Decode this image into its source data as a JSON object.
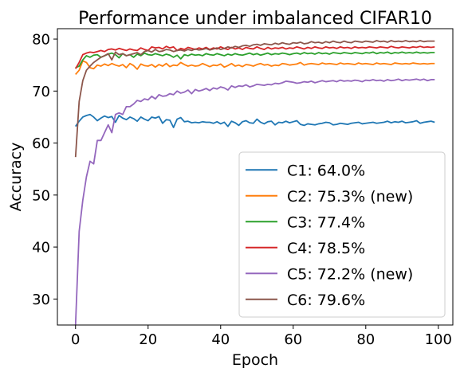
{
  "chart_data": {
    "type": "line",
    "title": "Performance under imbalanced CIFAR10",
    "xlabel": "Epoch",
    "ylabel": "Accuracy",
    "xlim": [
      -5,
      104
    ],
    "ylim": [
      25,
      82
    ],
    "xticks": [
      0,
      20,
      40,
      60,
      80,
      100
    ],
    "yticks": [
      30,
      40,
      50,
      60,
      70,
      80
    ],
    "grid": false,
    "legend_position": "lower-right",
    "x": [
      0,
      1,
      2,
      3,
      4,
      5,
      6,
      7,
      8,
      9,
      10,
      11,
      12,
      13,
      14,
      15,
      16,
      17,
      18,
      19,
      20,
      21,
      22,
      23,
      24,
      25,
      26,
      27,
      28,
      29,
      30,
      31,
      32,
      33,
      34,
      35,
      36,
      37,
      38,
      39,
      40,
      41,
      42,
      43,
      44,
      45,
      46,
      47,
      48,
      49,
      50,
      51,
      52,
      53,
      54,
      55,
      56,
      57,
      58,
      59,
      60,
      61,
      62,
      63,
      64,
      65,
      66,
      67,
      68,
      69,
      70,
      71,
      72,
      73,
      74,
      75,
      76,
      77,
      78,
      79,
      80,
      81,
      82,
      83,
      84,
      85,
      86,
      87,
      88,
      89,
      90,
      91,
      92,
      93,
      94,
      95,
      96,
      97,
      98,
      99
    ],
    "series": [
      {
        "name": "C1: 64.0%",
        "color": "#1f77b4",
        "values": [
          63.2,
          64.2,
          65.0,
          65.3,
          65.5,
          65.0,
          64.3,
          64.8,
          65.2,
          64.9,
          65.1,
          64.0,
          65.3,
          64.8,
          64.5,
          65.0,
          64.7,
          64.2,
          65.0,
          64.6,
          64.3,
          65.0,
          64.8,
          65.1,
          63.8,
          64.5,
          64.4,
          63.0,
          64.6,
          64.9,
          64.1,
          64.2,
          63.9,
          64.0,
          63.9,
          64.1,
          64.0,
          64.0,
          63.8,
          64.1,
          63.7,
          64.0,
          63.2,
          64.2,
          63.9,
          63.4,
          64.1,
          64.3,
          63.9,
          63.8,
          64.6,
          64.0,
          63.7,
          64.1,
          64.2,
          63.5,
          64.0,
          63.9,
          64.2,
          63.9,
          64.1,
          64.3,
          63.6,
          63.4,
          63.7,
          63.6,
          63.5,
          63.7,
          63.8,
          64.0,
          63.9,
          63.5,
          63.6,
          63.8,
          63.7,
          63.6,
          63.8,
          63.9,
          64.0,
          63.7,
          63.8,
          63.9,
          64.0,
          63.8,
          63.9,
          64.0,
          64.2,
          63.9,
          64.1,
          64.0,
          64.2,
          63.9,
          64.0,
          64.1,
          64.3,
          63.8,
          64.0,
          64.1,
          64.2,
          64.0
        ]
      },
      {
        "name": "C2: 75.3% (new)",
        "color": "#ff7f0e",
        "values": [
          73.2,
          74.0,
          75.8,
          75.5,
          74.5,
          74.3,
          75.0,
          74.8,
          75.2,
          74.9,
          75.3,
          75.0,
          74.8,
          75.1,
          74.5,
          75.3,
          74.9,
          74.2,
          75.2,
          74.9,
          74.8,
          75.1,
          74.6,
          75.1,
          74.8,
          75.3,
          74.7,
          75.0,
          74.9,
          75.5,
          75.1,
          74.8,
          75.0,
          74.8,
          74.9,
          75.3,
          75.0,
          74.7,
          75.0,
          74.9,
          75.2,
          74.6,
          74.9,
          75.3,
          74.8,
          75.0,
          74.7,
          75.1,
          75.0,
          74.8,
          75.1,
          75.3,
          75.0,
          75.1,
          74.8,
          75.0,
          74.9,
          75.3,
          75.2,
          75.0,
          75.1,
          75.2,
          75.5,
          75.0,
          75.2,
          75.3,
          75.2,
          75.1,
          75.4,
          75.2,
          75.3,
          75.2,
          75.1,
          75.4,
          75.2,
          75.3,
          75.2,
          75.1,
          75.4,
          75.2,
          75.3,
          75.2,
          75.1,
          75.4,
          75.2,
          75.3,
          75.2,
          75.1,
          75.4,
          75.3,
          75.2,
          75.3,
          75.2,
          75.4,
          75.3,
          75.2,
          75.3,
          75.2,
          75.3,
          75.3
        ]
      },
      {
        "name": "C3: 77.4%",
        "color": "#2ca02c",
        "values": [
          74.5,
          74.8,
          76.0,
          76.8,
          76.5,
          76.9,
          77.0,
          76.5,
          76.8,
          77.1,
          77.3,
          77.0,
          76.4,
          77.2,
          76.8,
          77.0,
          76.5,
          77.1,
          76.8,
          77.3,
          77.0,
          76.9,
          77.2,
          77.0,
          76.8,
          77.1,
          76.9,
          76.5,
          76.9,
          76.2,
          77.0,
          76.8,
          77.1,
          76.9,
          77.0,
          76.8,
          77.2,
          77.0,
          76.9,
          77.2,
          77.0,
          76.8,
          77.1,
          76.9,
          77.2,
          77.0,
          76.9,
          77.1,
          77.3,
          77.0,
          77.2,
          76.9,
          77.1,
          77.3,
          77.0,
          77.2,
          77.1,
          77.3,
          77.2,
          77.0,
          77.2,
          77.3,
          77.1,
          77.4,
          77.2,
          77.3,
          77.1,
          77.4,
          77.2,
          77.3,
          77.1,
          77.4,
          77.3,
          77.2,
          77.4,
          77.3,
          77.2,
          77.4,
          77.3,
          77.2,
          77.4,
          77.3,
          77.5,
          77.2,
          77.4,
          77.3,
          77.5,
          77.2,
          77.4,
          77.3,
          77.5,
          77.3,
          77.4,
          77.3,
          77.5,
          77.3,
          77.4,
          77.3,
          77.4,
          77.4
        ]
      },
      {
        "name": "C4: 78.5%",
        "color": "#d62728",
        "values": [
          74.3,
          75.5,
          77.0,
          77.3,
          77.5,
          77.4,
          77.6,
          77.8,
          77.6,
          78.0,
          78.1,
          77.9,
          78.2,
          78.0,
          77.8,
          78.1,
          77.9,
          77.8,
          78.3,
          78.0,
          77.8,
          78.5,
          78.3,
          78.4,
          78.1,
          78.6,
          78.3,
          78.5,
          77.8,
          78.2,
          78.0,
          78.4,
          78.2,
          78.0,
          78.3,
          78.1,
          78.4,
          78.0,
          78.3,
          78.1,
          78.5,
          78.2,
          78.0,
          78.4,
          78.1,
          78.3,
          78.0,
          78.4,
          78.2,
          78.1,
          78.5,
          78.2,
          78.0,
          78.4,
          78.1,
          78.3,
          78.2,
          78.4,
          78.1,
          78.3,
          78.2,
          78.5,
          78.3,
          78.1,
          78.4,
          78.2,
          78.5,
          78.3,
          78.2,
          78.5,
          78.3,
          78.4,
          78.2,
          78.5,
          78.3,
          78.4,
          78.2,
          78.5,
          78.3,
          78.4,
          78.3,
          78.5,
          78.4,
          78.3,
          78.5,
          78.4,
          78.3,
          78.6,
          78.4,
          78.3,
          78.5,
          78.4,
          78.3,
          78.5,
          78.4,
          78.6,
          78.4,
          78.5,
          78.4,
          78.5
        ]
      },
      {
        "name": "C5: 72.2% (new)",
        "color": "#9467bd",
        "values": [
          25.0,
          43.0,
          49.0,
          53.5,
          56.5,
          56.0,
          60.5,
          60.5,
          62.0,
          63.5,
          62.0,
          65.5,
          65.8,
          65.5,
          67.0,
          67.0,
          67.5,
          68.2,
          68.0,
          68.5,
          68.3,
          69.0,
          68.5,
          69.3,
          69.0,
          69.1,
          69.5,
          69.3,
          70.0,
          69.6,
          69.8,
          70.2,
          69.5,
          70.3,
          70.0,
          70.2,
          70.5,
          70.1,
          70.6,
          70.4,
          70.8,
          70.6,
          70.2,
          71.0,
          70.7,
          71.0,
          70.9,
          71.2,
          70.8,
          71.0,
          71.3,
          71.2,
          71.1,
          71.3,
          71.2,
          71.5,
          71.4,
          71.6,
          71.9,
          71.8,
          71.7,
          71.5,
          71.6,
          71.8,
          71.7,
          71.9,
          71.6,
          71.8,
          72.0,
          71.8,
          71.9,
          72.0,
          71.8,
          72.1,
          71.9,
          72.0,
          71.9,
          72.1,
          72.0,
          71.8,
          72.1,
          72.0,
          72.2,
          72.0,
          72.1,
          71.9,
          72.2,
          72.0,
          72.1,
          72.3,
          72.0,
          72.2,
          72.1,
          72.2,
          72.3,
          72.1,
          72.3,
          72.0,
          72.2,
          72.2
        ]
      },
      {
        "name": "C6: 79.6%",
        "color": "#8c564b",
        "values": [
          57.3,
          68.0,
          72.0,
          74.0,
          74.8,
          75.5,
          76.0,
          76.5,
          76.8,
          77.2,
          76.0,
          77.5,
          77.0,
          77.2,
          76.8,
          77.0,
          77.2,
          77.4,
          77.0,
          77.6,
          77.8,
          77.5,
          78.0,
          77.6,
          77.7,
          78.0,
          77.9,
          77.6,
          77.8,
          77.9,
          77.7,
          78.0,
          77.8,
          78.1,
          77.9,
          78.0,
          78.2,
          77.9,
          78.1,
          78.3,
          78.0,
          78.2,
          78.5,
          78.3,
          78.6,
          78.4,
          78.7,
          78.8,
          78.6,
          78.9,
          79.0,
          78.8,
          79.1,
          79.0,
          78.9,
          79.2,
          79.0,
          79.3,
          79.1,
          79.0,
          79.3,
          79.2,
          79.4,
          79.1,
          79.2,
          79.5,
          79.3,
          79.4,
          79.2,
          79.5,
          79.3,
          79.6,
          79.4,
          79.3,
          79.6,
          79.4,
          79.3,
          79.6,
          79.5,
          79.4,
          79.6,
          79.5,
          79.4,
          79.7,
          79.5,
          79.6,
          79.4,
          79.7,
          79.5,
          79.6,
          79.5,
          79.7,
          79.5,
          79.6,
          79.5,
          79.7,
          79.5,
          79.6,
          79.6,
          79.6
        ]
      }
    ]
  }
}
